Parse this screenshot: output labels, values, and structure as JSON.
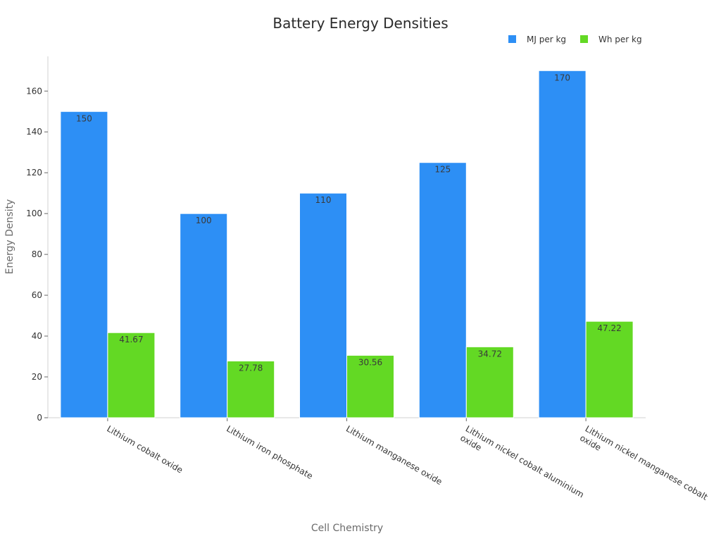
{
  "chart_data": {
    "type": "bar",
    "title": "Battery Energy Densities",
    "xlabel": "Cell Chemistry",
    "ylabel": "Energy Density",
    "categories": [
      "Lithium cobalt oxide",
      "Lithium iron phosphate",
      "Lithium manganese oxide",
      "Lithium nickel cobalt aluminium oxide",
      "Lithium nickel manganese cobalt oxide"
    ],
    "category_label_lines": [
      [
        "Lithium cobalt oxide"
      ],
      [
        "Lithium iron phosphate"
      ],
      [
        "Lithium manganese oxide"
      ],
      [
        "Lithium nickel cobalt aluminium",
        "oxide"
      ],
      [
        "Lithium nickel manganese cobalt",
        "oxide"
      ]
    ],
    "series": [
      {
        "name": "MJ per kg",
        "values": [
          150,
          100,
          110,
          125,
          170
        ],
        "labels": [
          "150",
          "100",
          "110",
          "125",
          "170"
        ],
        "color": "#2d8ff5"
      },
      {
        "name": "Wh per kg",
        "values": [
          41.67,
          27.78,
          30.56,
          34.72,
          47.22
        ],
        "labels": [
          "41.67",
          "27.78",
          "30.56",
          "34.72",
          "47.22"
        ],
        "color": "#63d924"
      }
    ],
    "ylim": [
      0,
      177
    ],
    "yticks": [
      0,
      20,
      40,
      60,
      80,
      100,
      120,
      140,
      160
    ],
    "grid": false,
    "legend_position": "top-right"
  }
}
